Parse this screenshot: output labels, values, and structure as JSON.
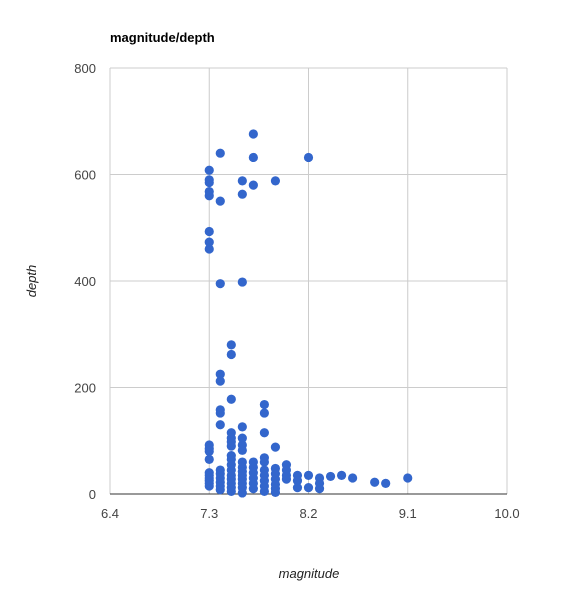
{
  "chart_data": {
    "type": "scatter",
    "title": "magnitude/depth",
    "xlabel": "magnitude",
    "ylabel": "depth",
    "xlim": [
      6.4,
      10.0
    ],
    "ylim": [
      0,
      800
    ],
    "xticks": [
      6.4,
      7.3,
      8.2,
      9.1,
      10.0
    ],
    "xtick_labels": [
      "6.4",
      "7.3",
      "8.2",
      "9.1",
      "10.0"
    ],
    "yticks": [
      0,
      200,
      400,
      600,
      800
    ],
    "ytick_labels": [
      "0",
      "200",
      "400",
      "600",
      "800"
    ],
    "grid": true,
    "legend": "none",
    "colors": {
      "points": "#3366cc",
      "grid": "#cccccc",
      "baseline": "#333333"
    },
    "points": [
      [
        7.3,
        608
      ],
      [
        7.3,
        590
      ],
      [
        7.3,
        585
      ],
      [
        7.3,
        568
      ],
      [
        7.3,
        560
      ],
      [
        7.3,
        493
      ],
      [
        7.3,
        473
      ],
      [
        7.3,
        460
      ],
      [
        7.3,
        92
      ],
      [
        7.3,
        85
      ],
      [
        7.3,
        80
      ],
      [
        7.3,
        65
      ],
      [
        7.3,
        40
      ],
      [
        7.3,
        35
      ],
      [
        7.3,
        30
      ],
      [
        7.3,
        25
      ],
      [
        7.3,
        20
      ],
      [
        7.3,
        15
      ],
      [
        7.4,
        640
      ],
      [
        7.4,
        550
      ],
      [
        7.4,
        395
      ],
      [
        7.4,
        225
      ],
      [
        7.4,
        212
      ],
      [
        7.4,
        158
      ],
      [
        7.4,
        152
      ],
      [
        7.4,
        130
      ],
      [
        7.4,
        45
      ],
      [
        7.4,
        38
      ],
      [
        7.4,
        30
      ],
      [
        7.4,
        22
      ],
      [
        7.4,
        15
      ],
      [
        7.4,
        8
      ],
      [
        7.5,
        280
      ],
      [
        7.5,
        262
      ],
      [
        7.5,
        178
      ],
      [
        7.5,
        115
      ],
      [
        7.5,
        105
      ],
      [
        7.5,
        98
      ],
      [
        7.5,
        90
      ],
      [
        7.5,
        72
      ],
      [
        7.5,
        65
      ],
      [
        7.5,
        55
      ],
      [
        7.5,
        45
      ],
      [
        7.5,
        35
      ],
      [
        7.5,
        28
      ],
      [
        7.5,
        20
      ],
      [
        7.5,
        12
      ],
      [
        7.5,
        5
      ],
      [
        7.6,
        588
      ],
      [
        7.6,
        563
      ],
      [
        7.6,
        398
      ],
      [
        7.6,
        126
      ],
      [
        7.6,
        105
      ],
      [
        7.6,
        92
      ],
      [
        7.6,
        82
      ],
      [
        7.6,
        60
      ],
      [
        7.6,
        50
      ],
      [
        7.6,
        42
      ],
      [
        7.6,
        35
      ],
      [
        7.6,
        28
      ],
      [
        7.6,
        20
      ],
      [
        7.6,
        12
      ],
      [
        7.6,
        2
      ],
      [
        7.7,
        676
      ],
      [
        7.7,
        632
      ],
      [
        7.7,
        580
      ],
      [
        7.7,
        60
      ],
      [
        7.7,
        50
      ],
      [
        7.7,
        40
      ],
      [
        7.7,
        30
      ],
      [
        7.7,
        20
      ],
      [
        7.7,
        10
      ],
      [
        7.8,
        168
      ],
      [
        7.8,
        152
      ],
      [
        7.8,
        115
      ],
      [
        7.8,
        68
      ],
      [
        7.8,
        60
      ],
      [
        7.8,
        45
      ],
      [
        7.8,
        35
      ],
      [
        7.8,
        25
      ],
      [
        7.8,
        15
      ],
      [
        7.8,
        5
      ],
      [
        7.9,
        588
      ],
      [
        7.9,
        88
      ],
      [
        7.9,
        48
      ],
      [
        7.9,
        38
      ],
      [
        7.9,
        28
      ],
      [
        7.9,
        18
      ],
      [
        7.9,
        10
      ],
      [
        7.9,
        3
      ],
      [
        8.0,
        55
      ],
      [
        8.0,
        45
      ],
      [
        8.0,
        35
      ],
      [
        8.0,
        28
      ],
      [
        8.1,
        35
      ],
      [
        8.1,
        25
      ],
      [
        8.1,
        12
      ],
      [
        8.2,
        632
      ],
      [
        8.2,
        35
      ],
      [
        8.2,
        12
      ],
      [
        8.3,
        30
      ],
      [
        8.3,
        20
      ],
      [
        8.3,
        10
      ],
      [
        8.4,
        33
      ],
      [
        8.5,
        35
      ],
      [
        8.6,
        30
      ],
      [
        8.8,
        22
      ],
      [
        8.9,
        20
      ],
      [
        9.1,
        30
      ]
    ]
  }
}
